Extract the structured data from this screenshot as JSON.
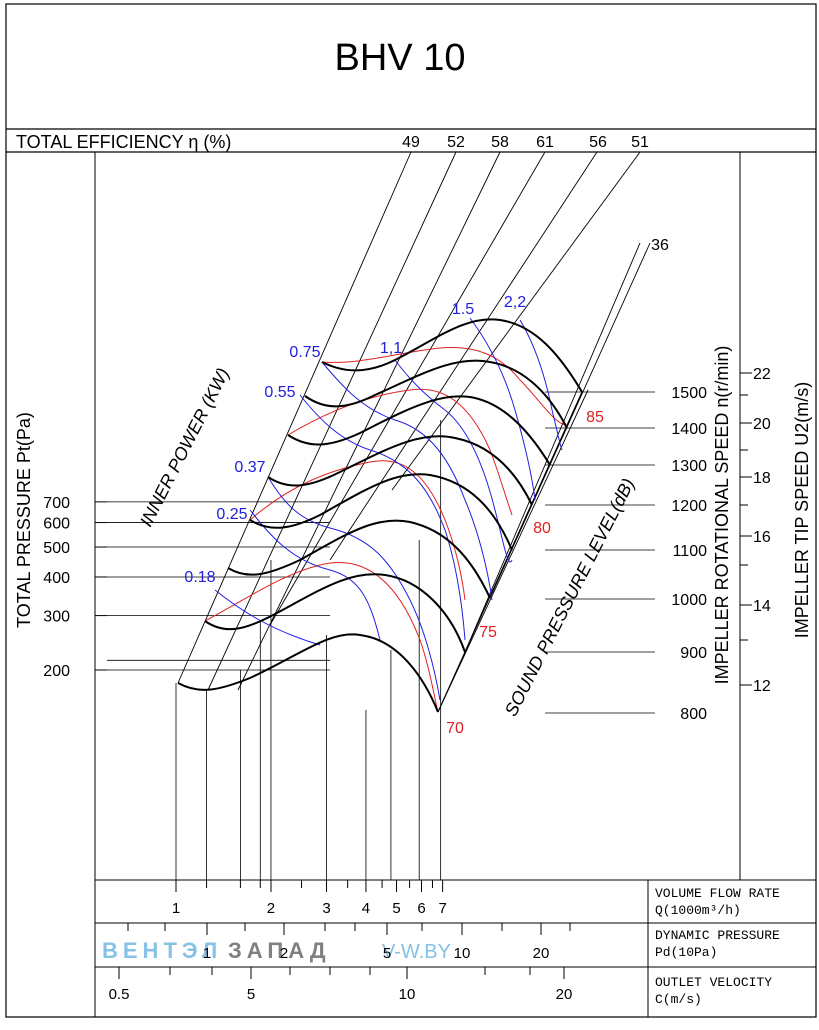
{
  "chart_data": {
    "type": "line",
    "title": "BHV 10",
    "efficiency": {
      "label": "TOTAL EFFICIENCY η (%)",
      "values": [
        "49",
        "52",
        "58",
        "61",
        "56",
        "51",
        "36"
      ]
    },
    "y_axis": {
      "label": "TOTAL PRESSURE Pt(Pa)",
      "scale": "log",
      "ticks": [
        "700",
        "600",
        "500",
        "400",
        "300",
        "200"
      ]
    },
    "speed_axis": {
      "label": "IMPELLER ROTATIONAL SPEED n(r/min)",
      "ticks": [
        "1500",
        "1400",
        "1300",
        "1200",
        "1100",
        "1000",
        "900",
        "800"
      ]
    },
    "tip_speed_axis": {
      "label": "IMPELLER TIP SPEED U2(m/s)",
      "ticks": [
        "22",
        "20",
        "18",
        "16",
        "14",
        "12"
      ]
    },
    "power": {
      "label": "INNER POWER (KW)",
      "color": "#2020e0",
      "values": [
        "0.18",
        "0.25",
        "0.37",
        "0.55",
        "0.75",
        "1,1",
        "1.5",
        "2,2"
      ]
    },
    "sound": {
      "label": "SOUND PRESSURE LEVEL(dB)",
      "color": "#e02020",
      "values": [
        "70",
        "75",
        "80",
        "85"
      ]
    },
    "flow_axis": {
      "label1": "VOLUME FLOW RATE",
      "label2": "Q(1000m³/h)",
      "scale": "log",
      "ticks": [
        "1",
        "2",
        "3",
        "4",
        "5",
        "6",
        "7"
      ]
    },
    "dynamic_axis": {
      "label1": "DYNAMIC PRESSURE",
      "label2": "Pd(10Pa)",
      "ticks": [
        "1",
        "2",
        "5",
        "10",
        "20"
      ]
    },
    "velocity_axis": {
      "label1": "OUTLET VELOCITY",
      "label2": "C(m/s)",
      "ticks": [
        "0.5",
        "5",
        "10",
        "20"
      ]
    },
    "speed_curves_rpm": [
      800,
      900,
      1000,
      1100,
      1200,
      1300,
      1400,
      1500
    ]
  },
  "watermark": {
    "part1": "ВЕНТЭЛ",
    "part2": "ЗАПАД",
    "part3": "V-W.BY"
  }
}
